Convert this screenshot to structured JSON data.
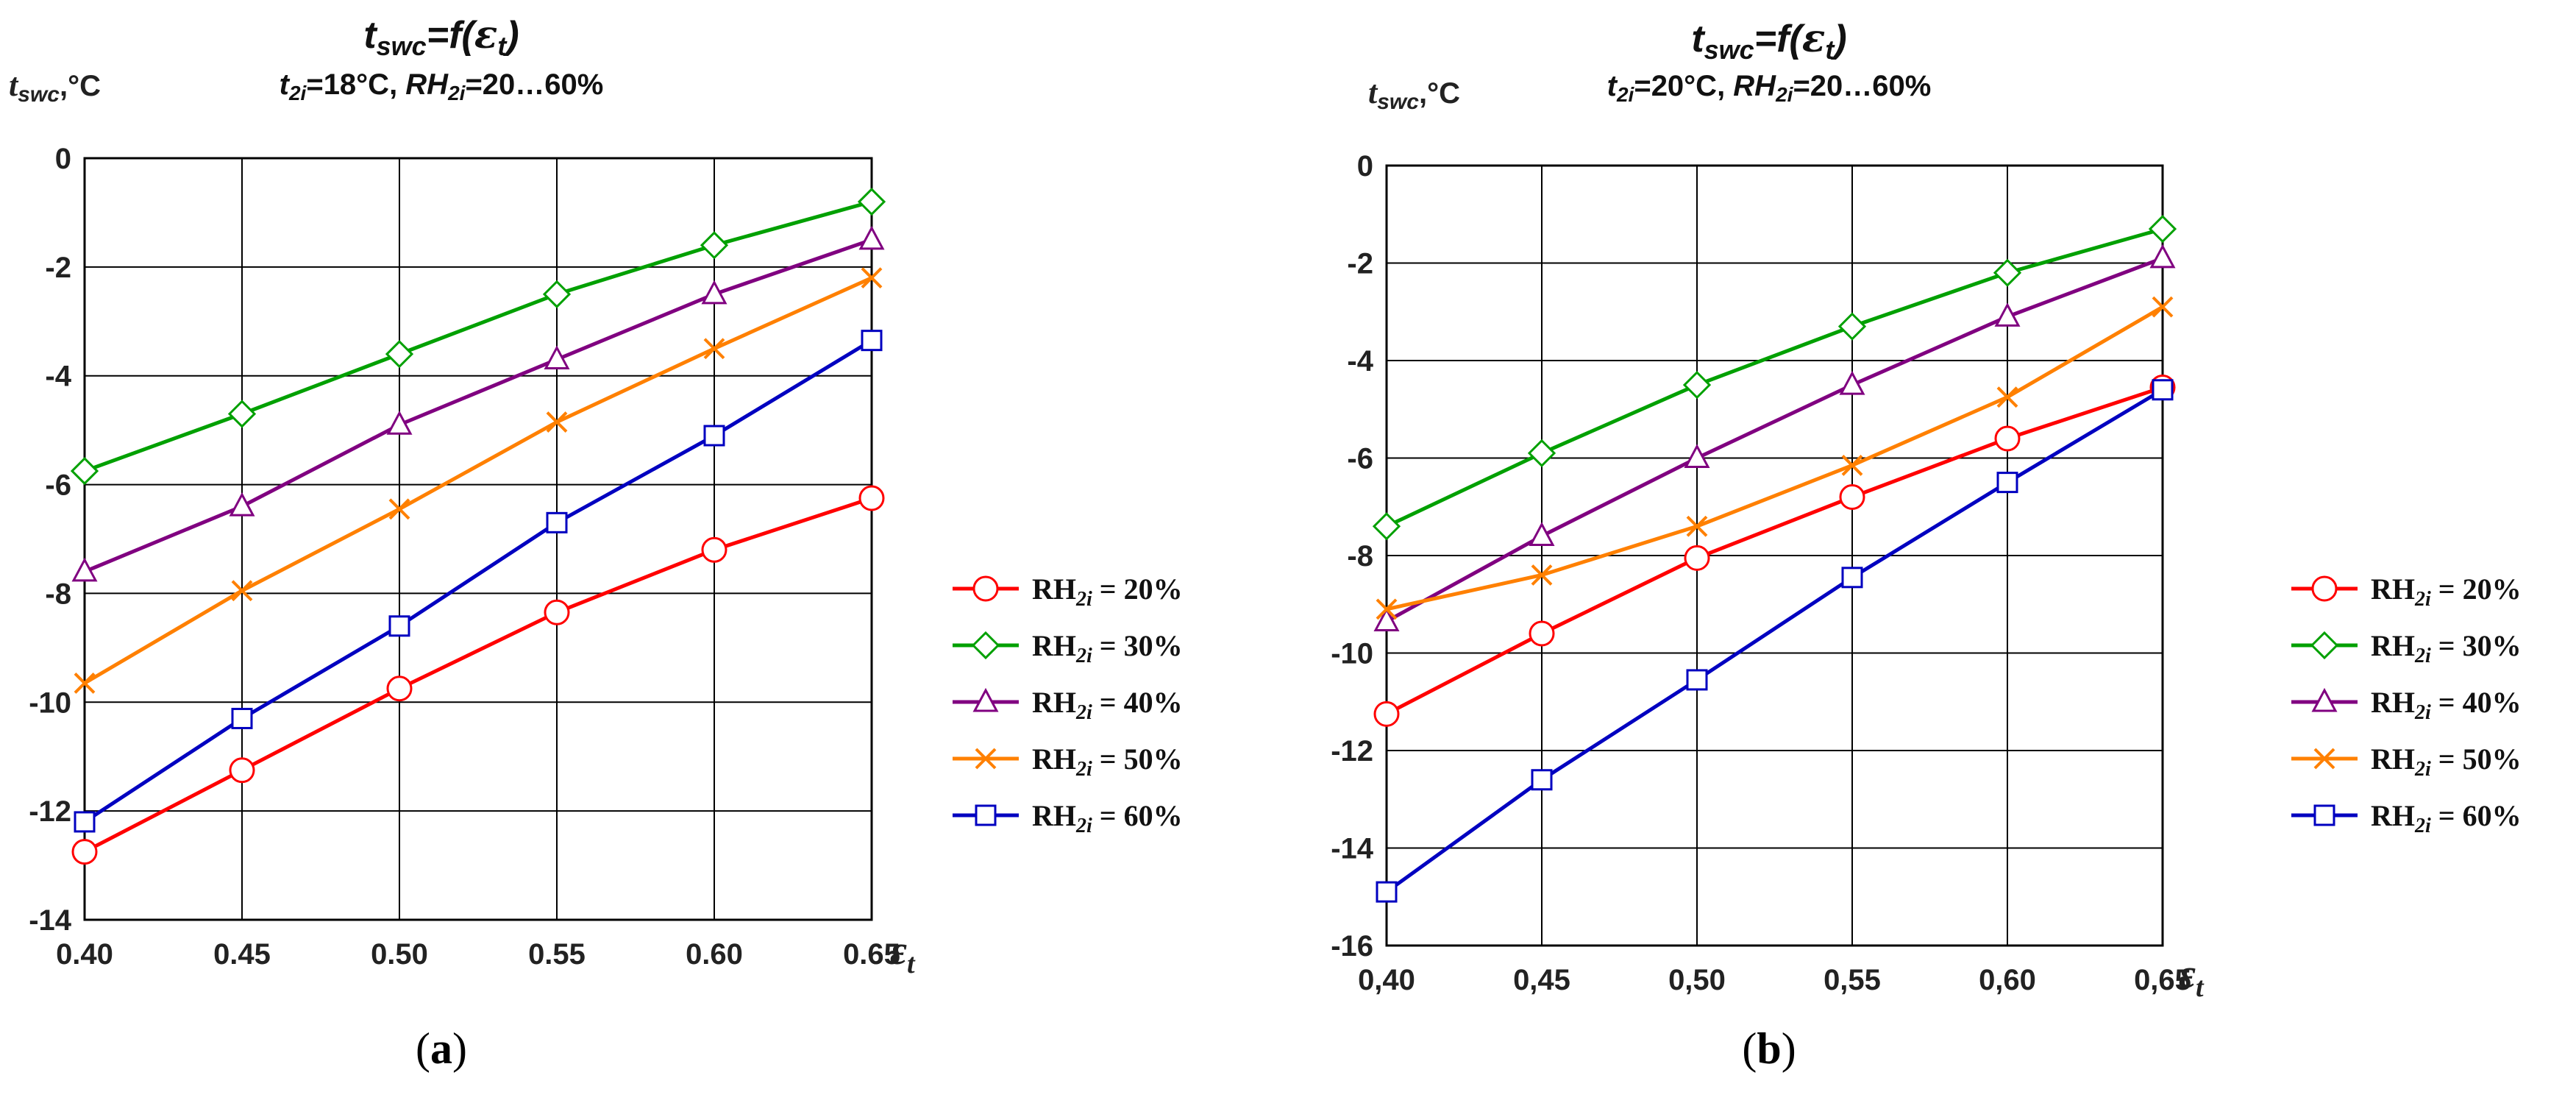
{
  "chart_data": [
    {
      "type": "line",
      "panel_label": "a",
      "title": "t_swc=f(ε_t)",
      "title_parts": {
        "var": "t",
        "var_sub": "swc",
        "mid": "=f(",
        "eps": "ε",
        "eps_sub": "t",
        "end": ")"
      },
      "subtitle_parts": {
        "t": "t",
        "t_sub": "2i",
        "t_val": "=18°C, ",
        "rh": "RH",
        "rh_sub": "2i",
        "rh_val": "=20…60%"
      },
      "ylabel_parts": {
        "var": "t",
        "var_sub": "swc",
        "unit": ",°C"
      },
      "xlabel_parts": {
        "eps": "ε",
        "eps_sub": "t"
      },
      "x": [
        0.4,
        0.45,
        0.5,
        0.55,
        0.6,
        0.65
      ],
      "x_tick_labels": [
        "0.40",
        "0.45",
        "0.50",
        "0.55",
        "0.60",
        "0.65"
      ],
      "xlim": [
        0.4,
        0.65
      ],
      "ylim": [
        -14,
        0
      ],
      "y_ticks": [
        0,
        -2,
        -4,
        -6,
        -8,
        -10,
        -12,
        -14
      ],
      "y_tick_labels": [
        "0",
        "-2",
        "-4",
        "-6",
        "-8",
        "-10",
        "-12",
        "-14"
      ],
      "grid": true,
      "legend_position": "right",
      "series": [
        {
          "name": "RH2i = 20%",
          "label_main": "RH",
          "label_sub": "2i",
          "label_rest": " = 20%",
          "color": "#ff0000",
          "marker": "circle",
          "values": [
            -12.75,
            -11.25,
            -9.75,
            -8.35,
            -7.2,
            -6.25
          ]
        },
        {
          "name": "RH2i = 30%",
          "label_main": "RH",
          "label_sub": "2i",
          "label_rest": " = 30%",
          "color": "#00a000",
          "marker": "diamond",
          "values": [
            -5.75,
            -4.7,
            -3.6,
            -2.5,
            -1.6,
            -0.8
          ]
        },
        {
          "name": "RH2i = 40%",
          "label_main": "RH",
          "label_sub": "2i",
          "label_rest": " = 40%",
          "color": "#800080",
          "marker": "triangle",
          "values": [
            -7.6,
            -6.4,
            -4.9,
            -3.7,
            -2.5,
            -1.5
          ]
        },
        {
          "name": "RH2i = 50%",
          "label_main": "RH",
          "label_sub": "2i",
          "label_rest": " = 50%",
          "color": "#ff8000",
          "marker": "x",
          "values": [
            -9.65,
            -7.95,
            -6.45,
            -4.85,
            -3.5,
            -2.2
          ]
        },
        {
          "name": "RH2i = 60%",
          "label_main": "RH",
          "label_sub": "2i",
          "label_rest": " = 60%",
          "color": "#0000c0",
          "marker": "square",
          "values": [
            -12.2,
            -10.3,
            -8.6,
            -6.7,
            -5.1,
            -3.35
          ]
        }
      ]
    },
    {
      "type": "line",
      "panel_label": "b",
      "title": "t_swc=f(ε_t)",
      "title_parts": {
        "var": "t",
        "var_sub": "swc",
        "mid": "=f(",
        "eps": "ε",
        "eps_sub": "t",
        "end": ")"
      },
      "subtitle_parts": {
        "t": "t",
        "t_sub": "2i",
        "t_val": "=20°C, ",
        "rh": "RH",
        "rh_sub": "2i",
        "rh_val": "=20…60%"
      },
      "ylabel_parts": {
        "var": "t",
        "var_sub": "swc",
        "unit": ",°C"
      },
      "xlabel_parts": {
        "eps": "ε",
        "eps_sub": "t"
      },
      "x": [
        0.4,
        0.45,
        0.5,
        0.55,
        0.6,
        0.65
      ],
      "x_tick_labels": [
        "0,40",
        "0,45",
        "0,50",
        "0,55",
        "0,60",
        "0,65"
      ],
      "xlim": [
        0.4,
        0.65
      ],
      "ylim": [
        -16,
        0
      ],
      "y_ticks": [
        0,
        -2,
        -4,
        -6,
        -8,
        -10,
        -12,
        -14,
        -16
      ],
      "y_tick_labels": [
        "0",
        "-2",
        "-4",
        "-6",
        "-8",
        "-10",
        "-12",
        "-14",
        "-16"
      ],
      "grid": true,
      "legend_position": "right",
      "series": [
        {
          "name": "RH2i = 20%",
          "label_main": "RH",
          "label_sub": "2i",
          "label_rest": " = 20%",
          "color": "#ff0000",
          "marker": "circle",
          "values": [
            -11.25,
            -9.6,
            -8.05,
            -6.8,
            -5.6,
            -4.55
          ]
        },
        {
          "name": "RH2i = 30%",
          "label_main": "RH",
          "label_sub": "2i",
          "label_rest": " = 30%",
          "color": "#00a000",
          "marker": "diamond",
          "values": [
            -7.4,
            -5.9,
            -4.5,
            -3.3,
            -2.2,
            -1.3
          ]
        },
        {
          "name": "RH2i = 40%",
          "label_main": "RH",
          "label_sub": "2i",
          "label_rest": " = 40%",
          "color": "#800080",
          "marker": "triangle",
          "values": [
            -9.35,
            -7.6,
            -6.0,
            -4.5,
            -3.1,
            -1.9
          ]
        },
        {
          "name": "RH2i = 50%",
          "label_main": "RH",
          "label_sub": "2i",
          "label_rest": " = 50%",
          "color": "#ff8000",
          "marker": "x",
          "values": [
            -9.1,
            -8.4,
            -7.4,
            -6.15,
            -4.75,
            -2.9
          ]
        },
        {
          "name": "RH2i = 60%",
          "label_main": "RH",
          "label_sub": "2i",
          "label_rest": " = 60%",
          "color": "#0000c0",
          "marker": "square",
          "values": [
            -14.9,
            -12.6,
            -10.55,
            -8.45,
            -6.5,
            -4.6
          ]
        }
      ]
    }
  ]
}
